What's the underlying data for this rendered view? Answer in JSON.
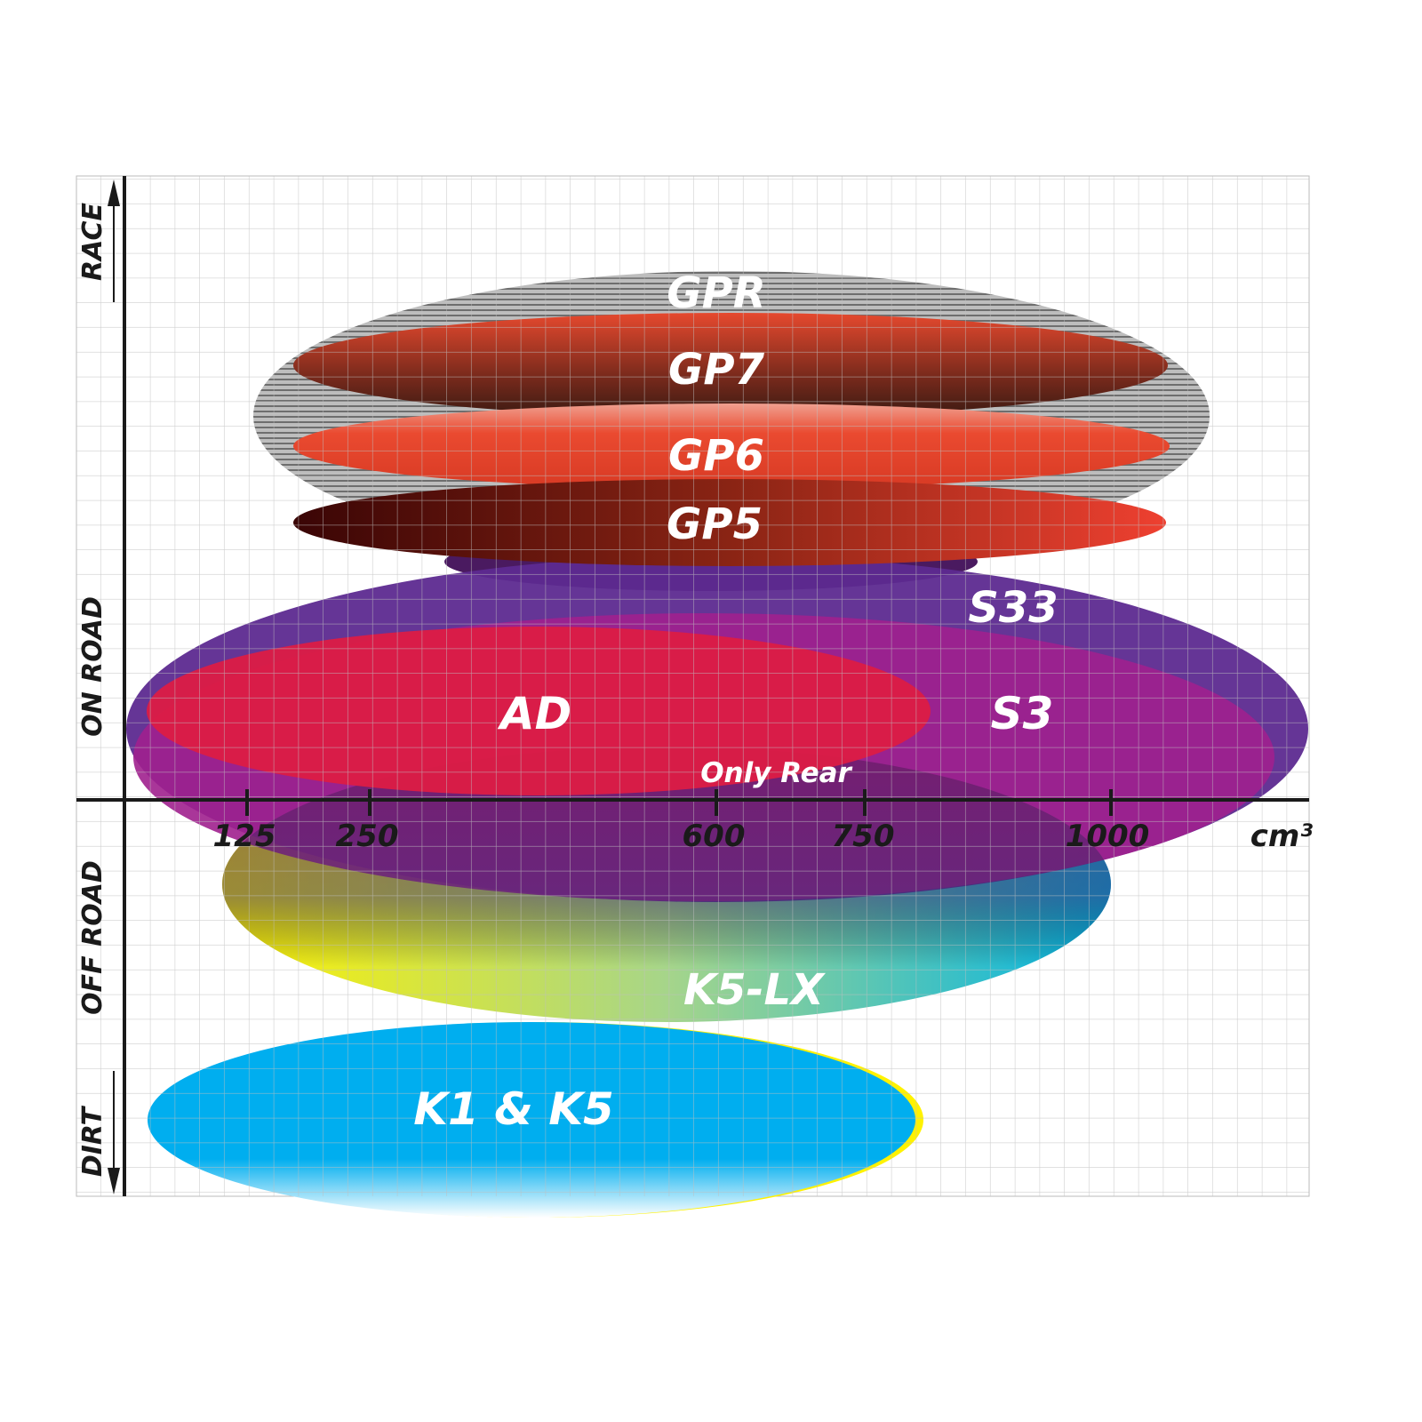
{
  "axis": {
    "x_unit": "cm³",
    "x_ticks": [
      "125",
      "250",
      "600",
      "750",
      "1000"
    ],
    "y_labels": {
      "race": "RACE",
      "on_road": "ON ROAD",
      "off_road": "OFF ROAD",
      "dirt": "DIRT"
    }
  },
  "products": {
    "gpr": {
      "label": "GPR",
      "color": "#9a9a9a"
    },
    "gp7": {
      "label": "GP7",
      "color": "#8a2e1e"
    },
    "gp6": {
      "label": "GP6",
      "color": "#e8452c"
    },
    "gp5": {
      "label": "GP5",
      "color": "#8a1010"
    },
    "s33": {
      "label": "S33",
      "color": "#5d2a90"
    },
    "s3": {
      "label": "S3",
      "color": "#a0208e"
    },
    "ad": {
      "label": "AD",
      "color": "#dc1c44"
    },
    "only_rear": {
      "label": "Only Rear"
    },
    "k5lx": {
      "label": "K5-LX",
      "color": "#22c3dc"
    },
    "k1k5": {
      "label": "K1 & K5",
      "color": "#00aeef"
    }
  }
}
